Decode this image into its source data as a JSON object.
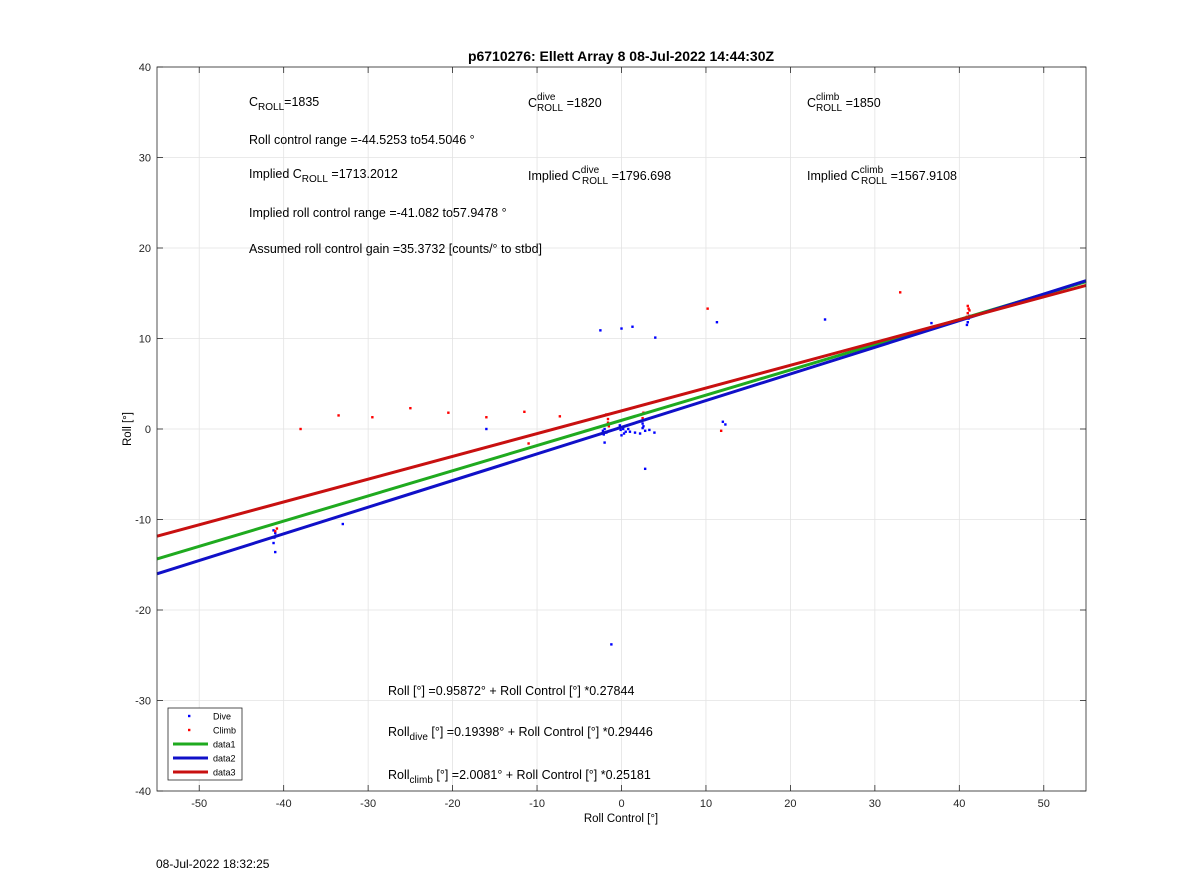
{
  "footer_timestamp": "08-Jul-2022 18:32:25",
  "chart_data": {
    "type": "scatter",
    "title": "p6710276: Ellett Array 8 08-Jul-2022 14:44:30Z",
    "xlabel": "Roll Control [°]",
    "ylabel": "Roll [°]",
    "xlim": [
      -55,
      55
    ],
    "ylim": [
      -40,
      40
    ],
    "xticks": [
      -50,
      -40,
      -30,
      -20,
      -10,
      0,
      10,
      20,
      30,
      40,
      50
    ],
    "yticks": [
      -40,
      -30,
      -20,
      -10,
      0,
      10,
      20,
      30,
      40
    ],
    "grid": true,
    "legend_position": "bottom-left",
    "legend": [
      {
        "label": "Dive",
        "kind": "marker",
        "color": "#0000ff"
      },
      {
        "label": "Climb",
        "kind": "marker",
        "color": "#ff0000"
      },
      {
        "label": "data1",
        "kind": "line",
        "color": "#1faa1f"
      },
      {
        "label": "data2",
        "kind": "line",
        "color": "#1010c8"
      },
      {
        "label": "data3",
        "kind": "line",
        "color": "#c81010"
      }
    ],
    "series": [
      {
        "name": "Dive",
        "color": "#0000ff",
        "points": [
          [
            -41,
            -13.6
          ],
          [
            -41.2,
            -12.6
          ],
          [
            -41.1,
            -12.0
          ],
          [
            -41.0,
            -11.5
          ],
          [
            -41.2,
            -11.2
          ],
          [
            -40.9,
            -11.8
          ],
          [
            -33,
            -10.5
          ],
          [
            -16,
            0
          ],
          [
            -2.5,
            10.9
          ],
          [
            0,
            11.1
          ],
          [
            1.3,
            11.3
          ],
          [
            4,
            10.1
          ],
          [
            11.3,
            11.8
          ],
          [
            24.1,
            12.1
          ],
          [
            36.7,
            11.7
          ],
          [
            -2,
            -1.5
          ],
          [
            -2.1,
            -0.6
          ],
          [
            -2,
            0
          ],
          [
            -2.2,
            -0.2
          ],
          [
            -1.8,
            -0.4
          ],
          [
            -0.1,
            -0.1
          ],
          [
            0.1,
            0.2
          ],
          [
            0.3,
            -0.5
          ],
          [
            -0.2,
            0.4
          ],
          [
            0.0,
            -0.7
          ],
          [
            0.2,
            0.0
          ],
          [
            -0.4,
            0.1
          ],
          [
            0.5,
            -0.3
          ],
          [
            0.8,
            0.0
          ],
          [
            1.0,
            -0.3
          ],
          [
            1.6,
            -0.4
          ],
          [
            2.2,
            -0.5
          ],
          [
            2.8,
            -0.2
          ],
          [
            3.3,
            -0.1
          ],
          [
            3.9,
            -0.4
          ],
          [
            2.5,
            0.6
          ],
          [
            2.6,
            0.3
          ],
          [
            2.7,
            1.0
          ],
          [
            2.5,
            0.1
          ],
          [
            2.8,
            -4.4
          ],
          [
            -1.2,
            -23.8
          ],
          [
            12,
            0.8
          ],
          [
            12.3,
            0.5
          ],
          [
            41,
            11.8
          ],
          [
            41.1,
            12.2
          ],
          [
            40.9,
            11.5
          ],
          [
            41.2,
            12.5
          ]
        ]
      },
      {
        "name": "Climb",
        "color": "#ff0000",
        "points": [
          [
            -38,
            0
          ],
          [
            -33.5,
            1.5
          ],
          [
            -29.5,
            1.3
          ],
          [
            -25,
            2.3
          ],
          [
            -20.5,
            1.8
          ],
          [
            -16,
            1.3
          ],
          [
            -11.5,
            1.9
          ],
          [
            -11,
            -1.6
          ],
          [
            -7.3,
            1.4
          ],
          [
            -1.8,
            1.6
          ],
          [
            -1.6,
            0.7
          ],
          [
            -1.5,
            0.3
          ],
          [
            -1.6,
            1.1
          ],
          [
            2.5,
            1.2
          ],
          [
            2.6,
            1.8
          ],
          [
            2.4,
            0.9
          ],
          [
            10.2,
            13.3
          ],
          [
            33,
            15.1
          ],
          [
            11.8,
            -0.2
          ],
          [
            -41,
            -11.3
          ],
          [
            -40.8,
            -11.0
          ],
          [
            41,
            12.8
          ],
          [
            41.1,
            13.3
          ],
          [
            40.9,
            12.4
          ],
          [
            41.2,
            13.1
          ],
          [
            41,
            13.6
          ]
        ]
      }
    ],
    "fit_lines": [
      {
        "name": "data1",
        "color": "#1faa1f",
        "intercept": 0.95872,
        "slope": 0.27844
      },
      {
        "name": "data2",
        "color": "#1010c8",
        "intercept": 0.19398,
        "slope": 0.29446
      },
      {
        "name": "data3",
        "color": "#c81010",
        "intercept": 2.0081,
        "slope": 0.25181
      }
    ],
    "annotations": {
      "c_roll": {
        "base": "C",
        "sub": "ROLL",
        "sup": "",
        "rest": "=1835"
      },
      "c_roll_dive": {
        "base": "C",
        "sub": "ROLL",
        "sup": "dive",
        "rest": " =1820"
      },
      "c_roll_climb": {
        "base": "C",
        "sub": "ROLL",
        "sup": "climb",
        "rest": " =1850"
      },
      "roll_control_range": "Roll control range =-44.5253 to54.5046 °",
      "implied_c_roll": {
        "pre": "Implied C",
        "sub": "ROLL",
        "sup": "",
        "rest": " =1713.2012"
      },
      "implied_c_roll_dive": {
        "pre": "Implied C",
        "sub": "ROLL",
        "sup": "dive",
        "rest": " =1796.698"
      },
      "implied_c_roll_climb": {
        "pre": "Implied C",
        "sub": "ROLL",
        "sup": "climb",
        "rest": " =1567.9108"
      },
      "implied_range": "Implied roll control range =-41.082 to57.9478 °",
      "assumed_gain": "Assumed roll control gain =35.3732 [counts/° to stbd]",
      "eq_all": {
        "pre": "Roll",
        "sub": "",
        "rest": " [°] =0.95872° + Roll Control [°] *0.27844"
      },
      "eq_dive": {
        "pre": "Roll",
        "sub": "dive",
        "rest": " [°] =0.19398° + Roll Control [°] *0.29446"
      },
      "eq_climb": {
        "pre": "Roll",
        "sub": "climb",
        "rest": " [°] =2.0081° + Roll Control [°] *0.25181"
      }
    }
  }
}
